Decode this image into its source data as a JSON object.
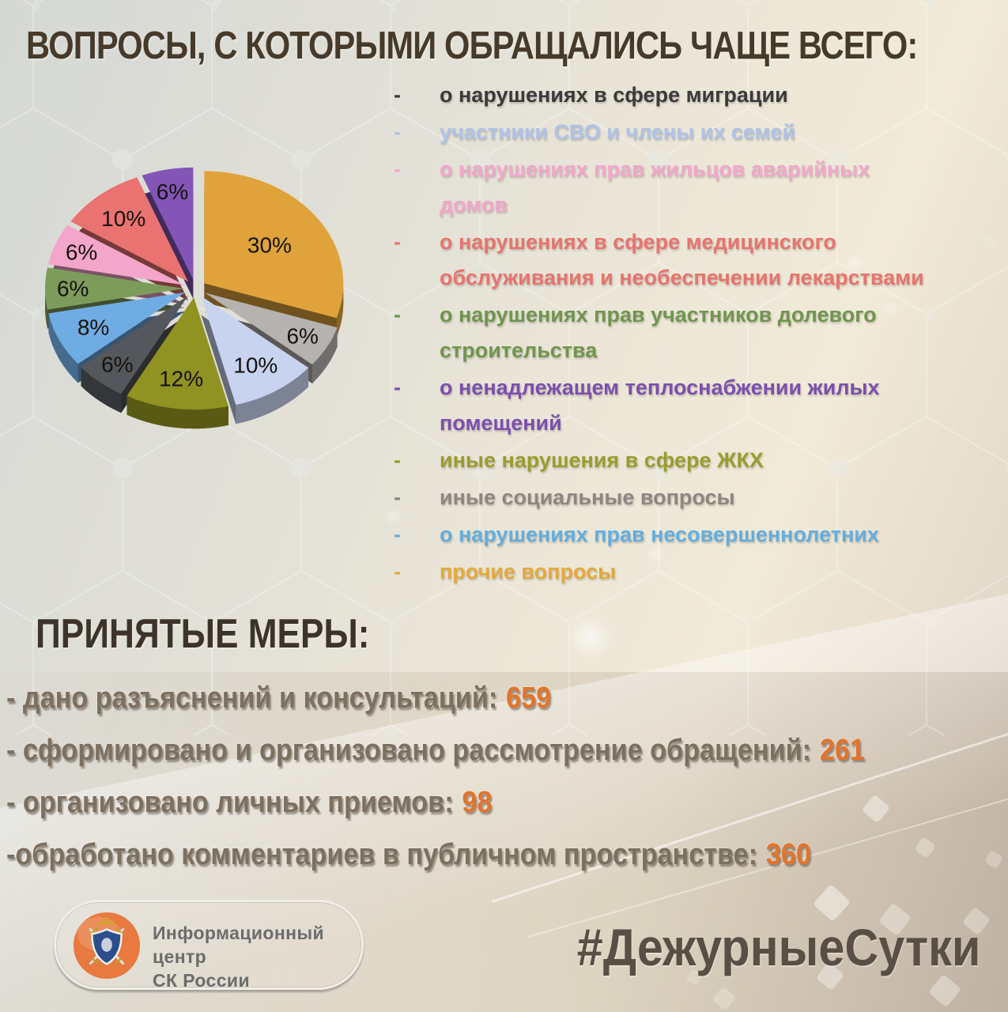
{
  "page": {
    "title": "ВОПРОСЫ, С КОТОРЫМИ ОБРАЩАЛИСЬ ЧАЩЕ ВСЕГО:"
  },
  "legend": {
    "items": [
      {
        "lines": [
          "о нарушениях в сфере миграции"
        ],
        "color": "#3a3a3a"
      },
      {
        "lines": [
          "участники СВО и члены их семей"
        ],
        "color": "#afc2e8"
      },
      {
        "lines": [
          "о нарушениях прав жильцов аварийных",
          "домов"
        ],
        "color": "#f1a7cb"
      },
      {
        "lines": [
          "о нарушениях в сфере медицинского",
          "обслуживания и необеспечении лекарствами"
        ],
        "color": "#e8736e"
      },
      {
        "lines": [
          "о нарушениях прав участников долевого",
          "строительства"
        ],
        "color": "#70954f"
      },
      {
        "lines": [
          "о ненадлежащем теплоснабжении жилых",
          "помещений"
        ],
        "color": "#7c4fae"
      },
      {
        "lines": [
          "иные нарушения в сфере ЖКХ"
        ],
        "color": "#9a9d2e"
      },
      {
        "lines": [
          "иные социальные вопросы"
        ],
        "color": "#8c8781"
      },
      {
        "lines": [
          "о нарушениях прав несовершеннолетних"
        ],
        "color": "#62aee0"
      },
      {
        "lines": [
          "прочие вопросы"
        ],
        "color": "#e4a93c"
      }
    ]
  },
  "chart_data": {
    "type": "pie",
    "style": "3d-exploded",
    "title": "ВОПРОСЫ, С КОТОРЫМИ ОБРАЩАЛИСЬ ЧАЩЕ ВСЕГО:",
    "unit": "percent",
    "start_angle_deg": -90,
    "direction": "clockwise",
    "label_format": "percent",
    "slices": [
      {
        "label": "прочие вопросы",
        "value": 30,
        "color": "#e0a33c"
      },
      {
        "label": "иные социальные вопросы",
        "value": 6,
        "color": "#b5b2af"
      },
      {
        "label": "участники СВО и члены их семей",
        "value": 10,
        "color": "#c8d3f0"
      },
      {
        "label": "иные нарушения в сфере ЖКХ",
        "value": 12,
        "color": "#909221"
      },
      {
        "label": "о нарушениях в сфере миграции",
        "value": 6,
        "color": "#54585c"
      },
      {
        "label": "о нарушениях прав несовершеннолетних",
        "value": 8,
        "color": "#6face3"
      },
      {
        "label": "о нарушениях прав участников долевого строительства",
        "value": 6,
        "color": "#7d9c5c"
      },
      {
        "label": "о нарушениях прав жильцов аварийных домов",
        "value": 6,
        "color": "#f3a6ca"
      },
      {
        "label": "о нарушениях в сфере медицинского обслуживания и необеспечении лекарствами",
        "value": 10,
        "color": "#ea7270"
      },
      {
        "label": "о ненадлежащем теплоснабжении жилых помещений",
        "value": 6,
        "color": "#8355b6"
      }
    ]
  },
  "measures": {
    "heading": "ПРИНЯТЫЕ МЕРЫ:",
    "value_color": "#e2742d",
    "items": [
      {
        "label": "- дано разъяснений и консультаций:",
        "value": "659"
      },
      {
        "label": "- сформировано и организовано рассмотрение обращений:",
        "value": "261"
      },
      {
        "label": "- организовано личных приемов:",
        "value": "98"
      },
      {
        "label": "-обработано комментариев в публичном пространстве:",
        "value": "360"
      }
    ]
  },
  "footer": {
    "org_name_line1": "Информационный центр",
    "org_name_line2": "СК России",
    "emblem_icon": "sk-russia-emblem",
    "hashtag": "#ДежурныеСутки"
  },
  "style": {
    "accent_orange": "#e2742d",
    "title_color": "#463a2a",
    "body_text_color": "#7c7060",
    "hashtag_color": "#594f45"
  }
}
